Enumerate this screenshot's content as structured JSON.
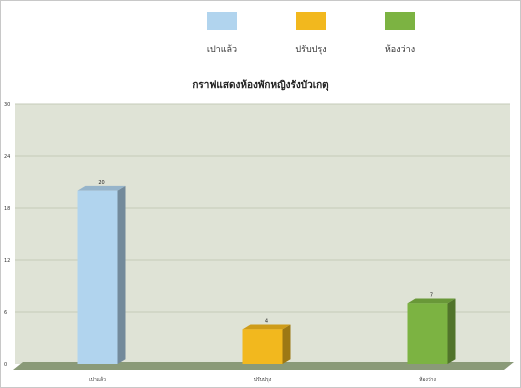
{
  "chart_data": {
    "type": "bar",
    "title": "กราฟแสดงห้องพักหญิงรังบัวเกตุ",
    "categories": [
      "เปาแล้ว",
      "ปรับปรุง",
      "ห้องว่าง"
    ],
    "values": [
      20,
      4,
      7
    ],
    "ylim": [
      0,
      30
    ],
    "yticks": [
      0,
      6,
      12,
      18,
      24,
      30
    ],
    "xlabel": "",
    "ylabel": "",
    "grid": true,
    "legend_position": "top",
    "colors": [
      "#b1d4ee",
      "#f2b81e",
      "#7cb342"
    ],
    "plot_background": "#dfe3d6",
    "floor_color": "#8a9a78"
  },
  "legend": [
    {
      "label": "เปาแล้ว",
      "color": "#b1d4ee"
    },
    {
      "label": "ปรับปรุง",
      "color": "#f2b81e"
    },
    {
      "label": "ห้องว่าง",
      "color": "#7cb342"
    }
  ]
}
